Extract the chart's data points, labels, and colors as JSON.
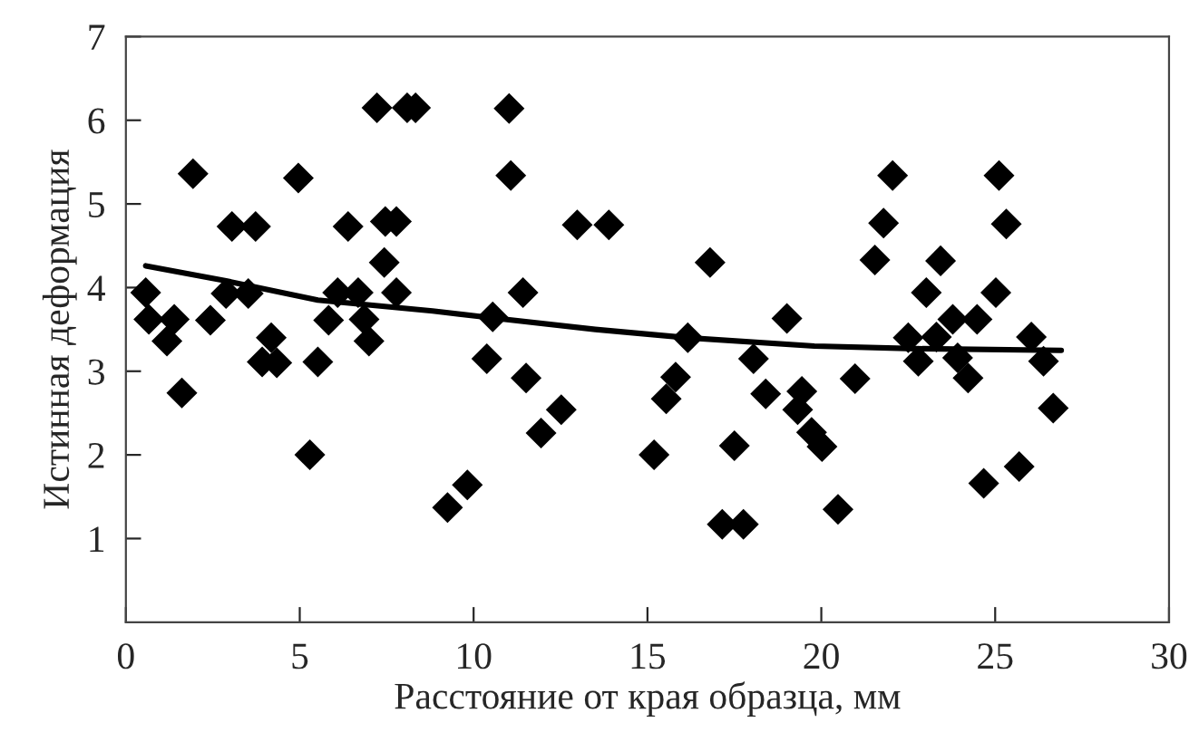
{
  "chart_data": {
    "type": "scatter",
    "xlabel": "Расстояние от края образца, мм",
    "ylabel": "Истинная деформация",
    "xlim": [
      0,
      30
    ],
    "ylim": [
      0,
      7
    ],
    "xticks": [
      0,
      5,
      10,
      15,
      20,
      25,
      30
    ],
    "yticks": [
      1,
      2,
      3,
      4,
      5,
      6,
      7
    ],
    "grid": false,
    "legend": false,
    "series": [
      {
        "color": "#000000",
        "marker": "diamond",
        "x": [
          0.57,
          0.66,
          1.39,
          1.18,
          1.61,
          1.93,
          2.43,
          2.88,
          3.05,
          3.52,
          3.73,
          3.92,
          4.18,
          4.34,
          4.96,
          5.29,
          5.52,
          5.83,
          6.09,
          6.39,
          6.68,
          6.85,
          6.99,
          7.22,
          7.43,
          7.46,
          7.78,
          7.78,
          8.09,
          8.33,
          9.25,
          9.82,
          10.38,
          10.55,
          11.02,
          11.07,
          11.42,
          11.51,
          11.94,
          12.52,
          12.98,
          13.89,
          15.19,
          15.54,
          15.81,
          16.16,
          16.8,
          17.15,
          17.5,
          17.76,
          18.05,
          18.4,
          19.01,
          19.44,
          19.32,
          19.72,
          20.02,
          20.48,
          20.97,
          21.54,
          21.79,
          22.05,
          22.5,
          22.79,
          23.02,
          23.31,
          23.43,
          23.78,
          23.92,
          24.22,
          24.48,
          24.67,
          25.02,
          25.11,
          25.32,
          25.69,
          26.04,
          26.39,
          26.67
        ],
        "values": [
          3.94,
          3.62,
          3.62,
          3.36,
          2.74,
          5.36,
          3.61,
          3.93,
          4.73,
          3.93,
          4.73,
          3.11,
          3.4,
          3.1,
          5.31,
          2.0,
          3.11,
          3.61,
          3.94,
          4.73,
          3.94,
          3.62,
          3.36,
          6.15,
          4.3,
          4.79,
          4.79,
          3.94,
          6.15,
          6.15,
          1.37,
          1.64,
          3.15,
          3.65,
          6.14,
          5.34,
          3.94,
          2.92,
          2.26,
          2.54,
          4.75,
          4.75,
          2.0,
          2.67,
          2.93,
          3.4,
          4.3,
          1.17,
          2.11,
          1.17,
          3.15,
          2.73,
          3.63,
          2.76,
          2.54,
          2.27,
          2.1,
          1.35,
          2.91,
          4.33,
          4.77,
          5.34,
          3.4,
          3.12,
          3.94,
          3.41,
          4.32,
          3.62,
          3.16,
          2.92,
          3.62,
          1.66,
          3.94,
          5.34,
          4.76,
          1.86,
          3.41,
          3.12,
          2.56
        ]
      },
      {
        "type": "line",
        "color": "#000000",
        "marker": "none",
        "line_style": "solid",
        "x": [
          0.57,
          2.88,
          5.52,
          8.82,
          10.5,
          13.5,
          16.16,
          19.8,
          22.7,
          26.9
        ],
        "values": [
          4.26,
          4.08,
          3.85,
          3.72,
          3.64,
          3.5,
          3.4,
          3.3,
          3.27,
          3.25
        ]
      }
    ]
  }
}
